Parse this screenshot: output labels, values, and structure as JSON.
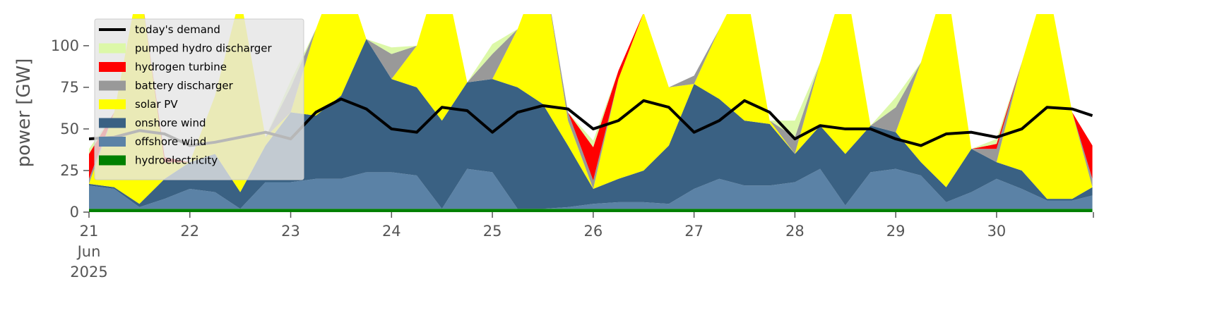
{
  "chart_data": {
    "type": "area",
    "y_label": "power [GW]",
    "legend": "upper left",
    "x": [
      21,
      21.25,
      21.5,
      21.75,
      22,
      22.25,
      22.5,
      22.75,
      23,
      23.25,
      23.5,
      23.75,
      24,
      24.25,
      24.5,
      24.75,
      25,
      25.25,
      25.5,
      25.75,
      26,
      26.25,
      26.5,
      26.75,
      27,
      27.25,
      27.5,
      27.75,
      28,
      28.25,
      28.5,
      28.75,
      29,
      29.25,
      29.5,
      29.75,
      30,
      30.25,
      30.5,
      30.75,
      30.95
    ],
    "xlim": [
      21,
      30.96
    ],
    "xticks": [
      {
        "value": 21,
        "label": "21\nJun\n2025"
      },
      22,
      23,
      24,
      25,
      26,
      27,
      28,
      29,
      30
    ],
    "ylim": [
      0,
      119
    ],
    "yticks": [
      0,
      25,
      50,
      75,
      100
    ],
    "series": [
      {
        "name": "hydroelectricity",
        "color": "#008000",
        "type": "area",
        "values": [
          2,
          2,
          2,
          2,
          2,
          2,
          2,
          2,
          2,
          2,
          2,
          2,
          2,
          2,
          2,
          2,
          2,
          2,
          2,
          2,
          2,
          2,
          2,
          2,
          2,
          2,
          2,
          2,
          2,
          2,
          2,
          2,
          2,
          2,
          2,
          2,
          2,
          2,
          2,
          2,
          2
        ]
      },
      {
        "name": "offshore wind",
        "color": "#5b82a6",
        "type": "area",
        "values": [
          14,
          12,
          1,
          6,
          12,
          10,
          0,
          16,
          16,
          18,
          18,
          22,
          22,
          20,
          0,
          24,
          22,
          0,
          0,
          1,
          3,
          4,
          4,
          3,
          12,
          18,
          14,
          14,
          16,
          24,
          2,
          22,
          24,
          20,
          4,
          10,
          18,
          12,
          5,
          5,
          8
        ]
      },
      {
        "name": "onshore wind",
        "color": "#3a6183",
        "type": "area",
        "values": [
          1,
          1,
          2,
          12,
          16,
          23,
          10,
          22,
          42,
          38,
          50,
          80,
          56,
          53,
          53,
          52,
          56,
          73,
          63,
          37,
          9,
          14,
          19,
          35,
          63,
          48,
          39,
          37,
          17,
          26,
          31,
          28,
          22,
          8,
          9,
          26,
          10,
          11,
          1,
          1,
          5
        ]
      },
      {
        "name": "solar PV",
        "color": "#ffff00",
        "type": "area",
        "values": [
          0,
          45,
          135,
          10,
          0,
          35,
          118,
          5,
          0,
          52,
          80,
          0,
          0,
          25,
          95,
          0,
          0,
          35,
          85,
          15,
          0,
          60,
          95,
          35,
          0,
          42,
          85,
          2,
          0,
          38,
          105,
          0,
          0,
          60,
          125,
          0,
          0,
          65,
          132,
          52,
          0
        ]
      },
      {
        "name": "battery discharger",
        "color": "#999999",
        "type": "area",
        "values": [
          3,
          0,
          0,
          0,
          0,
          0,
          0,
          0,
          15,
          0,
          0,
          0,
          15,
          0,
          0,
          0,
          15,
          0,
          0,
          5,
          5,
          0,
          0,
          0,
          5,
          0,
          0,
          0,
          10,
          0,
          0,
          0,
          15,
          0,
          0,
          0,
          8,
          0,
          0,
          0,
          5
        ]
      },
      {
        "name": "hydrogen turbine",
        "color": "#ff0000",
        "type": "area",
        "values": [
          15,
          0,
          0,
          3,
          0,
          0,
          0,
          0,
          0,
          0,
          0,
          0,
          0,
          0,
          0,
          0,
          0,
          0,
          0,
          0,
          20,
          5,
          0,
          0,
          0,
          0,
          0,
          0,
          0,
          0,
          0,
          0,
          0,
          0,
          0,
          0,
          3,
          0,
          0,
          0,
          20
        ]
      },
      {
        "name": "pumped hydro discharger",
        "color": "#dcf8a8",
        "type": "area",
        "values": [
          3,
          0,
          0,
          0,
          0,
          0,
          0,
          0,
          4,
          0,
          0,
          0,
          4,
          0,
          0,
          0,
          6,
          0,
          0,
          0,
          4,
          0,
          0,
          0,
          0,
          0,
          0,
          0,
          10,
          0,
          0,
          0,
          6,
          0,
          0,
          0,
          3,
          0,
          0,
          0,
          0
        ]
      },
      {
        "name": "today's demand",
        "color": "#000000",
        "type": "line",
        "values": [
          44,
          45,
          49,
          47,
          40,
          42,
          45,
          48,
          44,
          60,
          68,
          62,
          50,
          48,
          63,
          61,
          48,
          60,
          64,
          62,
          50,
          55,
          67,
          63,
          48,
          55,
          67,
          60,
          44,
          52,
          50,
          50,
          44,
          40,
          47,
          48,
          45,
          50,
          63,
          62,
          58
        ]
      }
    ]
  }
}
